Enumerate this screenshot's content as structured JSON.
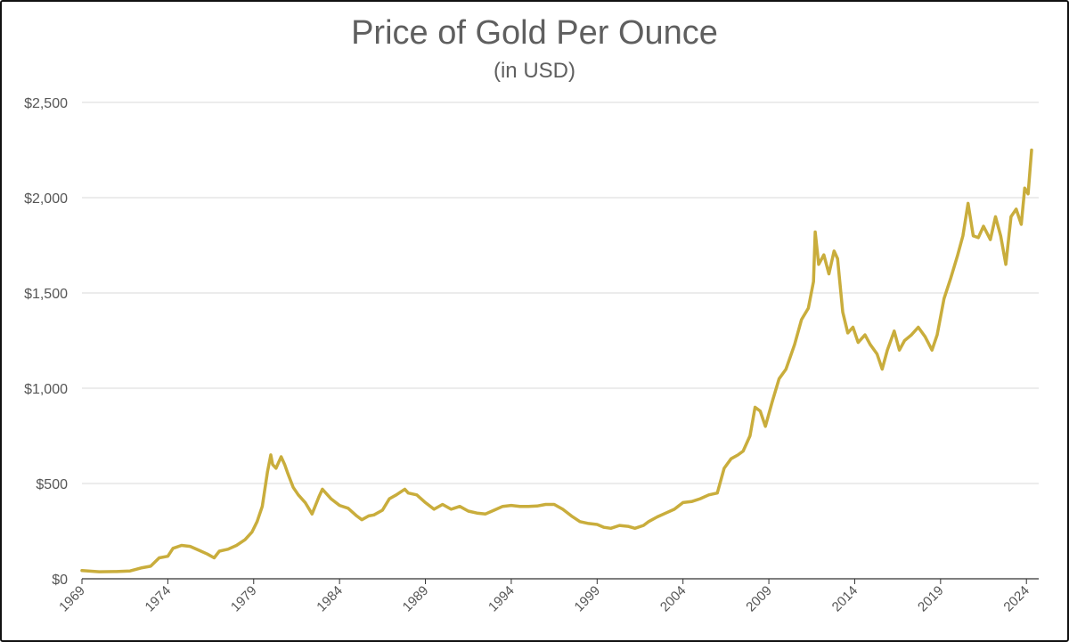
{
  "chart_data": {
    "type": "line",
    "title": "Price of Gold Per Ounce",
    "subtitle": "(in USD)",
    "xlabel": "",
    "ylabel": "",
    "xlim": [
      1969,
      2024.3
    ],
    "ylim": [
      0,
      2500
    ],
    "y_ticks": [
      0,
      500,
      1000,
      1500,
      2000,
      2500
    ],
    "y_tick_labels": [
      "$0",
      "$500",
      "$1,000",
      "$1,500",
      "$2,000",
      "$2,500"
    ],
    "x_ticks": [
      1969,
      1974,
      1979,
      1984,
      1989,
      1994,
      1999,
      2004,
      2009,
      2014,
      2019,
      2024
    ],
    "x_tick_labels": [
      "1969",
      "1974",
      "1979",
      "1984",
      "1989",
      "1994",
      "1999",
      "2004",
      "2009",
      "2014",
      "2019",
      "2024"
    ],
    "grid": "horizontal",
    "line_color": "#c9ad3c",
    "series": [
      {
        "x": [
          1969.0,
          1970.0,
          1971.0,
          1971.8,
          1972.5,
          1973.0,
          1973.5,
          1974.0,
          1974.3,
          1974.8,
          1975.3,
          1975.8,
          1976.3,
          1976.7,
          1977.0,
          1977.5,
          1978.0,
          1978.5,
          1978.9,
          1979.2,
          1979.5,
          1979.8,
          1980.0,
          1980.1,
          1980.3,
          1980.6,
          1980.8,
          1981.0,
          1981.3,
          1981.6,
          1982.0,
          1982.4,
          1982.8,
          1983.0,
          1983.5,
          1984.0,
          1984.5,
          1985.0,
          1985.3,
          1985.7,
          1986.0,
          1986.5,
          1986.9,
          1987.3,
          1987.8,
          1988.0,
          1988.5,
          1989.0,
          1989.5,
          1990.0,
          1990.5,
          1991.0,
          1991.5,
          1992.0,
          1992.5,
          1993.0,
          1993.5,
          1994.0,
          1994.5,
          1995.0,
          1995.5,
          1996.0,
          1996.5,
          1997.0,
          1997.5,
          1998.0,
          1998.5,
          1999.0,
          1999.4,
          1999.8,
          2000.3,
          2000.8,
          2001.2,
          2001.7,
          2002.0,
          2002.5,
          2003.0,
          2003.5,
          2004.0,
          2004.5,
          2005.0,
          2005.5,
          2006.0,
          2006.4,
          2006.8,
          2007.2,
          2007.5,
          2007.9,
          2008.2,
          2008.5,
          2008.8,
          2009.2,
          2009.6,
          2010.0,
          2010.5,
          2010.9,
          2011.3,
          2011.6,
          2011.7,
          2011.9,
          2012.2,
          2012.5,
          2012.8,
          2013.0,
          2013.3,
          2013.6,
          2013.9,
          2014.2,
          2014.6,
          2014.9,
          2015.3,
          2015.6,
          2015.9,
          2016.3,
          2016.6,
          2016.9,
          2017.3,
          2017.7,
          2018.1,
          2018.5,
          2018.8,
          2019.2,
          2019.6,
          2020.0,
          2020.3,
          2020.6,
          2020.9,
          2021.2,
          2021.5,
          2021.9,
          2022.2,
          2022.5,
          2022.8,
          2023.1,
          2023.4,
          2023.7,
          2023.9,
          2024.1,
          2024.3
        ],
        "y": [
          43,
          37,
          38,
          41,
          58,
          66,
          110,
          118,
          160,
          175,
          170,
          150,
          130,
          110,
          145,
          155,
          175,
          205,
          245,
          300,
          380,
          560,
          650,
          600,
          580,
          640,
          600,
          550,
          480,
          440,
          400,
          340,
          430,
          470,
          420,
          385,
          370,
          330,
          310,
          330,
          335,
          360,
          420,
          440,
          470,
          450,
          440,
          400,
          365,
          390,
          365,
          380,
          355,
          345,
          340,
          360,
          380,
          385,
          380,
          380,
          382,
          390,
          390,
          365,
          330,
          300,
          290,
          285,
          270,
          265,
          280,
          275,
          265,
          280,
          300,
          325,
          345,
          365,
          400,
          405,
          420,
          440,
          450,
          580,
          630,
          650,
          670,
          750,
          900,
          880,
          800,
          930,
          1050,
          1100,
          1230,
          1360,
          1420,
          1560,
          1820,
          1650,
          1700,
          1600,
          1720,
          1680,
          1400,
          1290,
          1320,
          1240,
          1280,
          1230,
          1180,
          1100,
          1200,
          1300,
          1200,
          1250,
          1280,
          1320,
          1270,
          1200,
          1280,
          1470,
          1580,
          1700,
          1800,
          1970,
          1800,
          1790,
          1850,
          1780,
          1900,
          1800,
          1650,
          1900,
          1940,
          1860,
          2050,
          2020,
          2250
        ]
      }
    ]
  }
}
